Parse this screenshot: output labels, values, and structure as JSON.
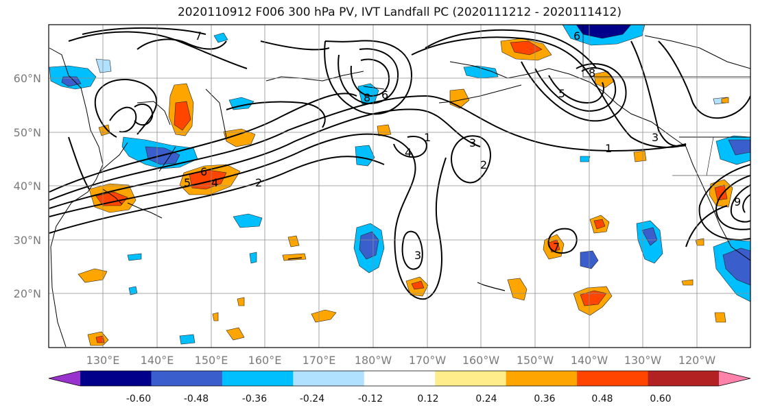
{
  "title": "2020110912 F006 300 hPa PV, IVT Landfall PC (2020111212 - 2020111412)",
  "lat_labels": [
    "20°N",
    "30°N",
    "40°N",
    "50°N",
    "60°N"
  ],
  "lon_labels": [
    "130°E",
    "140°E",
    "150°E",
    "160°E",
    "170°E",
    "180°W",
    "170°W",
    "160°W",
    "150°W",
    "140°W",
    "130°W",
    "120°W"
  ],
  "map": {
    "lat_range": [
      10,
      70
    ],
    "lon_range_east": [
      120,
      250
    ],
    "gridlines": true,
    "fields": [
      "300 hPa PV (contours)",
      "IVT Landfall PC (shaded)"
    ]
  },
  "pv_contour_labels": [
    "1",
    "2",
    "3",
    "4",
    "5",
    "6",
    "7",
    "8",
    "9"
  ],
  "colorbar": {
    "ticks": [
      "-0.60",
      "-0.48",
      "-0.36",
      "-0.24",
      "-0.12",
      "0.12",
      "0.24",
      "0.36",
      "0.48",
      "0.60"
    ],
    "colors": [
      "#9932cc",
      "#00008b",
      "#3a5fcd",
      "#00bfff",
      "#b0e2ff",
      "#ffffff",
      "#ffec8b",
      "#ffa500",
      "#ff4500",
      "#b22222",
      "#ff82ab"
    ],
    "extend": "both"
  }
}
